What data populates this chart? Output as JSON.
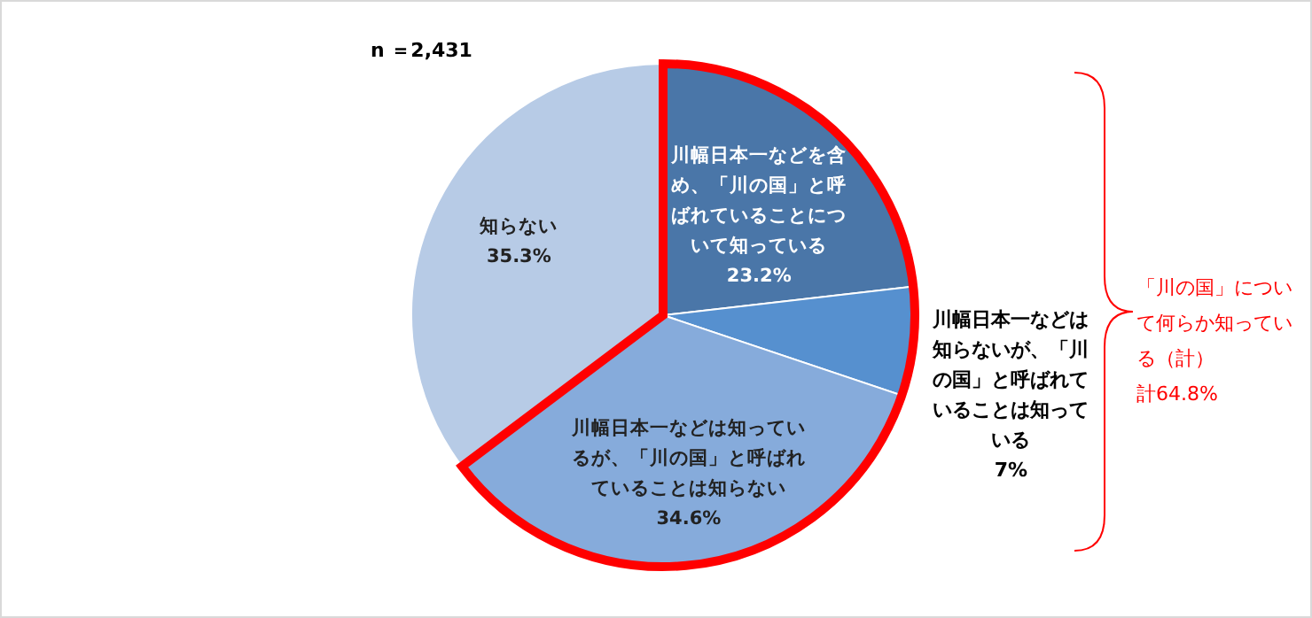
{
  "chart_data": {
    "type": "pie",
    "categories": [
      "川幅日本一などを含め、「川の国」と呼ばれていることについて知っている",
      "川幅日本一などは知らないが、「川の国」と呼ばれていることは知っている",
      "川幅日本一などは知っているが、「川の国」と呼ばれていることは知らない",
      "知らない"
    ],
    "values": [
      23.2,
      7,
      34.6,
      35.3
    ],
    "value_labels": [
      "23.2%",
      "7%",
      "34.6%",
      "35.3%"
    ],
    "colors": [
      "#4a76a8",
      "#5690cf",
      "#86abdb",
      "#b7cbe6"
    ],
    "legend": false,
    "annotations": [
      "n ＝2,431",
      "「川の国」について何らか知っている（計）",
      "計64.8%"
    ]
  }
}
